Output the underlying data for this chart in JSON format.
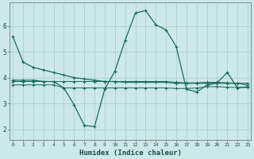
{
  "background_color": "#cce8e8",
  "grid_color": "#b0d0d0",
  "line_color": "#1a6b5a",
  "xlabel": "Humidex (Indice chaleur)",
  "x_ticks": [
    0,
    1,
    2,
    3,
    4,
    5,
    6,
    7,
    8,
    9,
    10,
    11,
    12,
    13,
    14,
    15,
    16,
    17,
    18,
    19,
    20,
    21,
    22,
    23
  ],
  "y_ticks": [
    2,
    3,
    4,
    5,
    6
  ],
  "ylim": [
    1.6,
    6.9
  ],
  "xlim": [
    -0.3,
    23.3
  ],
  "line1_x": [
    0,
    1,
    2,
    3,
    4,
    5,
    6,
    7,
    8,
    9,
    10,
    11,
    12,
    13,
    14,
    15,
    16,
    17,
    18,
    19,
    20,
    21,
    22,
    23
  ],
  "line1_y": [
    5.6,
    4.6,
    4.4,
    4.3,
    4.2,
    4.1,
    4.0,
    3.95,
    3.9,
    3.85,
    3.85,
    3.82,
    3.82,
    3.82,
    3.82,
    3.82,
    3.78,
    3.78,
    3.78,
    3.78,
    3.78,
    3.78,
    3.78,
    3.78
  ],
  "line2_x": [
    0,
    1,
    2,
    3,
    4,
    5,
    6,
    7,
    8,
    9,
    10,
    11,
    12,
    13,
    14,
    15,
    16,
    17,
    18,
    19,
    20,
    21,
    22,
    23
  ],
  "line2_y": [
    3.9,
    3.9,
    3.9,
    3.85,
    3.85,
    3.6,
    2.95,
    2.15,
    2.1,
    3.55,
    4.25,
    5.45,
    6.5,
    6.6,
    6.05,
    5.85,
    5.2,
    3.55,
    3.45,
    3.7,
    3.8,
    4.2,
    3.6,
    3.65
  ],
  "line3_x": [
    0,
    1,
    2,
    3,
    4,
    5,
    6,
    7,
    8,
    9,
    10,
    11,
    12,
    13,
    14,
    15,
    16,
    17,
    18,
    19,
    20,
    21,
    22,
    23
  ],
  "line3_y": [
    3.72,
    3.72,
    3.72,
    3.72,
    3.72,
    3.6,
    3.6,
    3.6,
    3.6,
    3.6,
    3.6,
    3.6,
    3.6,
    3.6,
    3.6,
    3.6,
    3.58,
    3.58,
    3.6,
    3.65,
    3.65,
    3.63,
    3.62,
    3.62
  ],
  "line4_x": [
    0,
    1,
    2,
    3,
    4,
    5,
    6,
    7,
    8,
    9,
    10,
    11,
    12,
    13,
    14,
    15,
    16,
    17,
    18,
    19,
    20,
    21,
    22,
    23
  ],
  "line4_y": [
    3.85,
    3.85,
    3.85,
    3.85,
    3.85,
    3.85,
    3.85,
    3.85,
    3.85,
    3.85,
    3.85,
    3.85,
    3.85,
    3.85,
    3.85,
    3.85,
    3.82,
    3.8,
    3.8,
    3.82,
    3.82,
    3.8,
    3.78,
    3.7
  ]
}
